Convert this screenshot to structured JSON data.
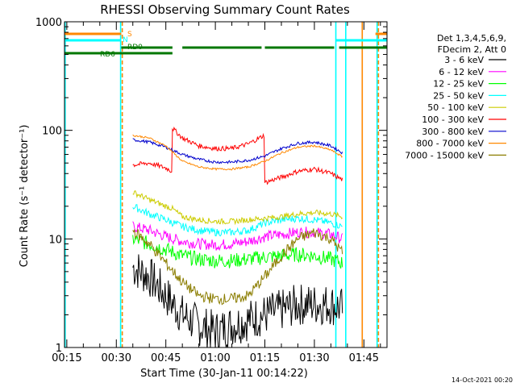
{
  "chart_data": {
    "type": "line",
    "title": "RHESSI Observing Summary Count Rates",
    "xlabel": "Start Time (30-Jan-11 00:14:22)",
    "ylabel": "Count Rate (s⁻¹ detector⁻¹)",
    "yscale": "log",
    "ylim": [
      1,
      1000
    ],
    "xlim_minutes": [
      14.3,
      112
    ],
    "x_ticks": [
      {
        "t": 15,
        "label": "00:15"
      },
      {
        "t": 30,
        "label": "00:30"
      },
      {
        "t": 45,
        "label": "00:45"
      },
      {
        "t": 60,
        "label": "01:00"
      },
      {
        "t": 75,
        "label": "01:15"
      },
      {
        "t": 90,
        "label": "01:30"
      },
      {
        "t": 105,
        "label": "01:45"
      }
    ],
    "y_ticks": [
      {
        "v": 1,
        "label": "1"
      },
      {
        "v": 10,
        "label": "10"
      },
      {
        "v": 100,
        "label": "100"
      },
      {
        "v": 1000,
        "label": "1000"
      }
    ],
    "legend": {
      "position": "right",
      "header": [
        "Det 1,3,4,5,6,9,",
        "FDecim 2, Att 0"
      ],
      "entries": [
        {
          "label": "3 - 6 keV",
          "color": "#000000"
        },
        {
          "label": "6 - 12 keV",
          "color": "#ff00ff"
        },
        {
          "label": "12 - 25 keV",
          "color": "#00ff00"
        },
        {
          "label": "25 - 50 keV",
          "color": "#00ffff"
        },
        {
          "label": "50 - 100 keV",
          "color": "#cccc00"
        },
        {
          "label": "100 - 300 keV",
          "color": "#ff0000"
        },
        {
          "label": "300 - 800 keV",
          "color": "#0000cc"
        },
        {
          "label": "800 - 7000 keV",
          "color": "#ff8800"
        },
        {
          "label": "7000 - 15000 keV",
          "color": "#8b7d00"
        }
      ]
    },
    "flags": [
      {
        "label": "S",
        "color": "#ff8800",
        "segments": [
          [
            14.3,
            31.5
          ],
          [
            108.5,
            112
          ]
        ]
      },
      {
        "label": "N",
        "color": "#00ffff",
        "segments": [
          [
            14.3,
            31.5
          ],
          [
            96.5,
            112
          ]
        ]
      },
      {
        "label": "RD0",
        "color": "#007700",
        "segments": [
          [
            31.5,
            47
          ],
          [
            50,
            74
          ],
          [
            75,
            96
          ],
          [
            97.5,
            112
          ]
        ]
      },
      {
        "label": "RD6",
        "color": "#007700",
        "segments": [
          [
            14.3,
            47
          ]
        ]
      }
    ],
    "vertical_lines": [
      {
        "t": 14.5,
        "color": "#00ffff",
        "style": "solid"
      },
      {
        "t": 31.3,
        "color": "#00ffff",
        "style": "solid"
      },
      {
        "t": 31.8,
        "color": "#ff8800",
        "style": "dashed"
      },
      {
        "t": 96.5,
        "color": "#00ffff",
        "style": "solid"
      },
      {
        "t": 99.5,
        "color": "#00ffff",
        "style": "solid"
      },
      {
        "t": 104.5,
        "color": "#ff8800",
        "style": "solid"
      },
      {
        "t": 109,
        "color": "#00ffff",
        "style": "solid"
      },
      {
        "t": 109.4,
        "color": "#ff8800",
        "style": "dashed"
      }
    ],
    "series": [
      {
        "name": "3 - 6 keV",
        "color": "#000000",
        "t": [
          35,
          40,
          45,
          50,
          55,
          60,
          65,
          70,
          75,
          80,
          85,
          90,
          95,
          98.5
        ],
        "values": [
          5.5,
          4.5,
          3,
          2,
          1.6,
          1.4,
          1.6,
          1.8,
          2,
          2.2,
          2.5,
          2.5,
          2.5,
          2.3
        ]
      },
      {
        "name": "6 - 12 keV",
        "color": "#ff00ff",
        "t": [
          35,
          40,
          45,
          50,
          55,
          60,
          65,
          70,
          75,
          80,
          85,
          90,
          95,
          98.5
        ],
        "values": [
          13,
          12,
          10.5,
          9.5,
          9,
          8.8,
          9,
          9.5,
          10.5,
          11,
          11.5,
          11.5,
          11,
          10
        ]
      },
      {
        "name": "12 - 25 keV",
        "color": "#00ff00",
        "t": [
          35,
          40,
          45,
          50,
          55,
          60,
          65,
          70,
          75,
          80,
          85,
          90,
          95,
          98.5
        ],
        "values": [
          10,
          9,
          8,
          7,
          6.5,
          6.3,
          6.3,
          6.5,
          6.8,
          7,
          7.2,
          7,
          6.5,
          6
        ]
      },
      {
        "name": "25 - 50 keV",
        "color": "#00ffff",
        "t": [
          35,
          40,
          45,
          50,
          55,
          60,
          65,
          70,
          75,
          80,
          85,
          90,
          95,
          98.5
        ],
        "values": [
          20,
          17,
          15,
          13,
          12,
          11.5,
          11.5,
          12,
          14,
          15,
          15.5,
          15,
          14,
          13
        ]
      },
      {
        "name": "50 - 100 keV",
        "color": "#cccc00",
        "t": [
          35,
          40,
          45,
          47,
          50,
          55,
          60,
          65,
          70,
          75,
          80,
          85,
          90,
          95,
          98.5
        ],
        "values": [
          27,
          23,
          20,
          19,
          16,
          15,
          14.5,
          14.5,
          15,
          15.5,
          16,
          17,
          17.5,
          17,
          16
        ]
      },
      {
        "name": "100 - 300 keV",
        "color": "#ff0000",
        "t": [
          35,
          40,
          45,
          46.8,
          47,
          50,
          55,
          60,
          65,
          70,
          74.8,
          75,
          80,
          85,
          90,
          95,
          98.5
        ],
        "values": [
          48,
          50,
          45,
          42,
          105,
          85,
          72,
          68,
          68,
          75,
          90,
          33,
          37,
          42,
          44,
          40,
          35
        ]
      },
      {
        "name": "300 - 800 keV",
        "color": "#0000cc",
        "t": [
          35,
          40,
          45,
          50,
          55,
          60,
          65,
          70,
          75,
          80,
          85,
          90,
          95,
          98.5
        ],
        "values": [
          82,
          78,
          70,
          60,
          54,
          51,
          51,
          53,
          58,
          68,
          76,
          78,
          72,
          62
        ]
      },
      {
        "name": "800 - 7000 keV",
        "color": "#ff8800",
        "t": [
          35,
          40,
          45,
          50,
          55,
          60,
          65,
          70,
          75,
          80,
          85,
          90,
          95,
          98.5
        ],
        "values": [
          90,
          85,
          72,
          52,
          46,
          44,
          44,
          46,
          52,
          62,
          70,
          72,
          66,
          57
        ]
      },
      {
        "name": "7000 - 15000 keV",
        "color": "#8b7d00",
        "t": [
          35,
          40,
          45,
          50,
          55,
          60,
          65,
          70,
          75,
          80,
          85,
          90,
          95,
          98.5
        ],
        "values": [
          12,
          9,
          6,
          4,
          3,
          2.8,
          2.8,
          3,
          4.5,
          7,
          10,
          11.5,
          10,
          7.5
        ]
      }
    ],
    "grid": false
  },
  "footer": {
    "timestamp": "14-Oct-2021 00:20"
  }
}
